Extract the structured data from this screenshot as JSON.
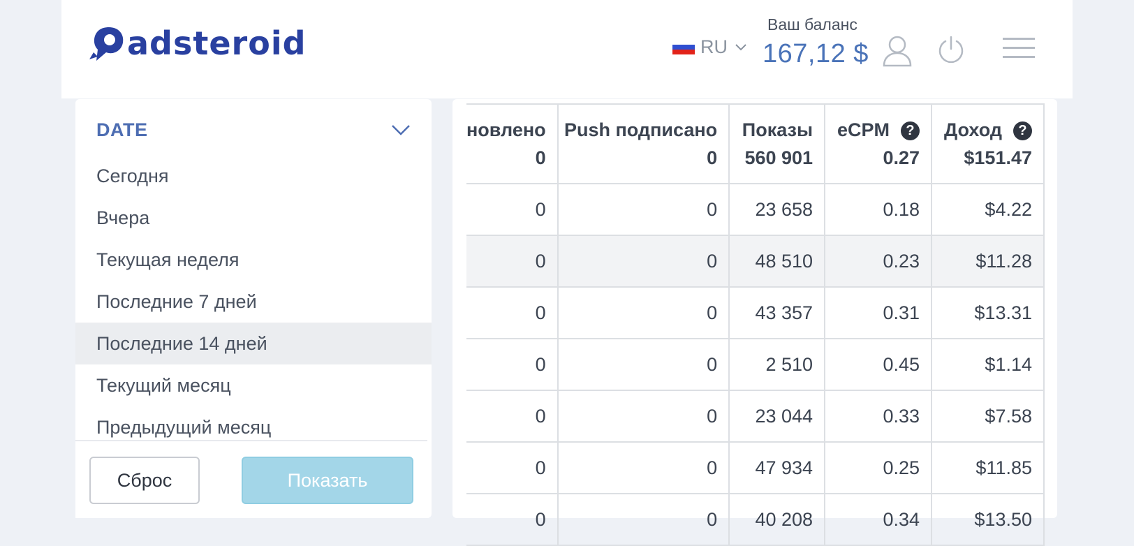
{
  "header": {
    "logo_text": "adsteroid",
    "lang": {
      "code": "RU",
      "flag_colors": [
        "#ffffff",
        "#2f4fd1",
        "#e2231a"
      ]
    },
    "balance_label": "Ваш баланс",
    "balance_value": "167,12 $"
  },
  "filter": {
    "title": "DATE",
    "options": [
      {
        "label": "Сегодня"
      },
      {
        "label": "Вчера"
      },
      {
        "label": "Текущая неделя"
      },
      {
        "label": "Последние 7 дней"
      },
      {
        "label": "Последние 14 дней",
        "active": true
      },
      {
        "label": "Текущий месяц"
      },
      {
        "label": "Предыдущий месяц"
      }
    ],
    "reset_label": "Сброс",
    "show_label": "Показать"
  },
  "table": {
    "columns": [
      {
        "title": "новлено",
        "total": "0",
        "help": false
      },
      {
        "title": "Push подписано",
        "total": "0",
        "help": false
      },
      {
        "title": "Показы",
        "total": "560 901",
        "help": false
      },
      {
        "title": "eCPM",
        "total": "0.27",
        "help": true
      },
      {
        "title": "Доход",
        "total": "$151.47",
        "help": true
      }
    ],
    "rows": [
      [
        "0",
        "0",
        "23 658",
        "0.18",
        "$4.22"
      ],
      [
        "0",
        "0",
        "48 510",
        "0.23",
        "$11.28"
      ],
      [
        "0",
        "0",
        "43 357",
        "0.31",
        "$13.31"
      ],
      [
        "0",
        "0",
        "2 510",
        "0.45",
        "$1.14"
      ],
      [
        "0",
        "0",
        "23 044",
        "0.33",
        "$7.58"
      ],
      [
        "0",
        "0",
        "47 934",
        "0.25",
        "$11.85"
      ],
      [
        "0",
        "0",
        "40 208",
        "0.34",
        "$13.50"
      ]
    ],
    "hover_row_index": 1
  },
  "colors": {
    "brand": "#2940a0",
    "accent": "#4d6db2",
    "balance": "#4a73b8",
    "show_button": "#a3d6e8",
    "page_background": "#eef1f6"
  }
}
